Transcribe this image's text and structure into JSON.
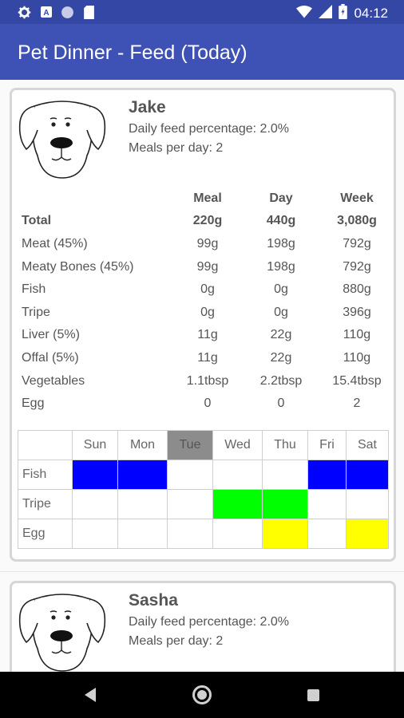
{
  "status_bar": {
    "time": "04:12",
    "icons_left": [
      "gear-icon",
      "a-icon",
      "circle-icon",
      "sdcard-icon"
    ],
    "icons_right": [
      "wifi-icon",
      "signal-icon",
      "battery-icon"
    ]
  },
  "app_bar": {
    "title": "Pet Dinner - Feed (Today)"
  },
  "pets": [
    {
      "name": "Jake",
      "daily_feed": "Daily feed percentage: 2.0%",
      "meals_per_day": "Meals per day: 2",
      "columns": [
        "Meal",
        "Day",
        "Week"
      ],
      "rows": [
        {
          "label": "Total",
          "meal": "220g",
          "day": "440g",
          "week": "3,080g"
        },
        {
          "label": "Meat (45%)",
          "meal": "99g",
          "day": "198g",
          "week": "792g"
        },
        {
          "label": "Meaty Bones (45%)",
          "meal": "99g",
          "day": "198g",
          "week": "792g"
        },
        {
          "label": "Fish",
          "meal": "0g",
          "day": "0g",
          "week": "880g"
        },
        {
          "label": "Tripe",
          "meal": "0g",
          "day": "0g",
          "week": "396g"
        },
        {
          "label": "Liver (5%)",
          "meal": "11g",
          "day": "22g",
          "week": "110g"
        },
        {
          "label": "Offal (5%)",
          "meal": "11g",
          "day": "22g",
          "week": "110g"
        },
        {
          "label": "Vegetables",
          "meal": "1.1tbsp",
          "day": "2.2tbsp",
          "week": "15.4tbsp"
        },
        {
          "label": "Egg",
          "meal": "0",
          "day": "0",
          "week": "2"
        }
      ],
      "schedule": {
        "days": [
          "Sun",
          "Mon",
          "Tue",
          "Wed",
          "Thu",
          "Fri",
          "Sat"
        ],
        "today": "Tue",
        "rows": [
          {
            "label": "Fish",
            "days": [
              "Sun",
              "Mon",
              "Fri",
              "Sat"
            ],
            "color": "#0000ff"
          },
          {
            "label": "Tripe",
            "days": [
              "Wed",
              "Thu"
            ],
            "color": "#00ff00"
          },
          {
            "label": "Egg",
            "days": [
              "Thu",
              "Sat"
            ],
            "color": "#ffff00"
          }
        ]
      }
    },
    {
      "name": "Sasha",
      "daily_feed": "Daily feed percentage: 2.0%",
      "meals_per_day": "Meals per day: 2"
    }
  ],
  "nav": {
    "icons": [
      "back-icon",
      "home-icon",
      "recents-icon"
    ]
  }
}
